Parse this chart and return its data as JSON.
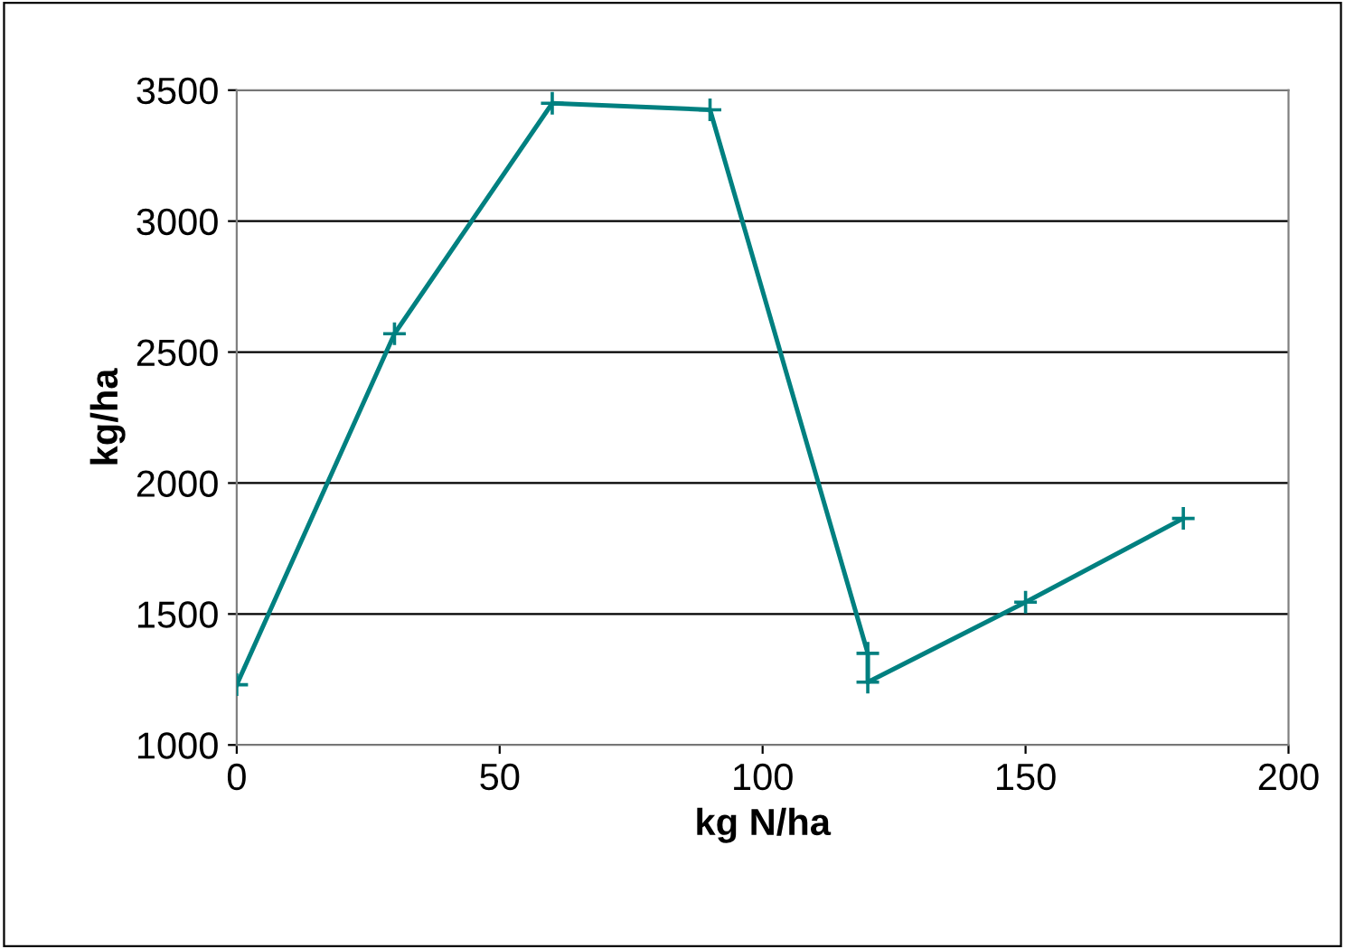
{
  "chart_data": {
    "type": "line",
    "xlabel": "kg N/ha",
    "ylabel": "kg/ha",
    "x": [
      0,
      30,
      60,
      90,
      120,
      120,
      150,
      180
    ],
    "series": [
      {
        "color": "#008080",
        "values": [
          1230,
          2570,
          3450,
          3425,
          1350,
          1240,
          1545,
          1865
        ]
      }
    ],
    "xlim": [
      0,
      200
    ],
    "xticks": [
      0,
      50,
      100,
      150,
      200
    ],
    "ylim": [
      1000,
      3500
    ],
    "yticks": [
      1000,
      1500,
      2000,
      2500,
      3000,
      3500
    ],
    "grid": "y",
    "marker": "cross",
    "line_style": "solid",
    "legend": false
  }
}
